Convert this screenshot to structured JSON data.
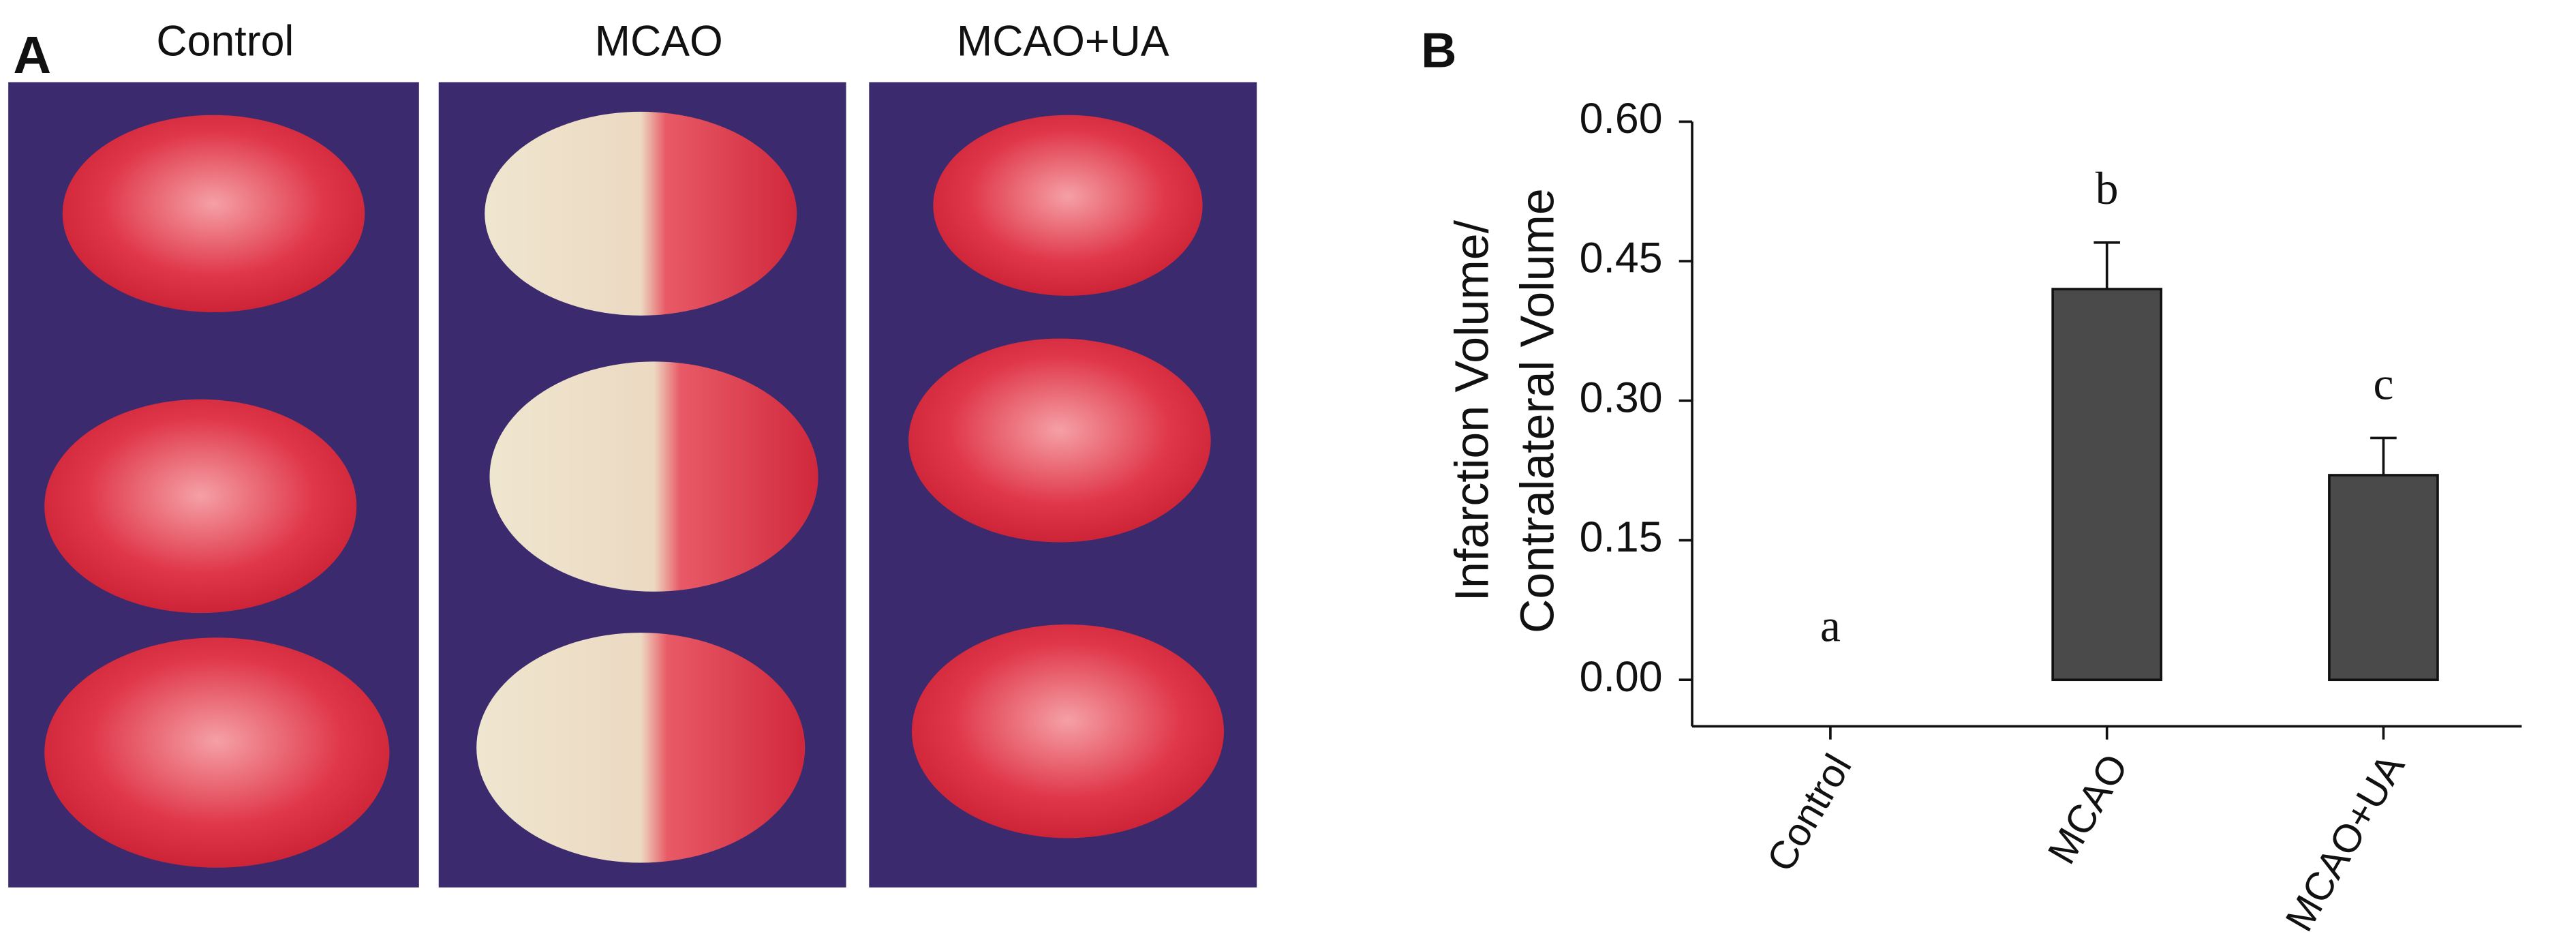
{
  "panel_a": {
    "label": "A",
    "columns": [
      "Control",
      "MCAO",
      "MCAO+UA"
    ]
  },
  "chart_data": {
    "type": "bar",
    "label": "B",
    "ylabel": [
      "Infarction Volume/",
      "Contralateral Volume"
    ],
    "categories": [
      "Control",
      "MCAO",
      "MCAO+UA"
    ],
    "values": [
      0,
      0.42,
      0.22
    ],
    "errors": [
      null,
      0.05,
      0.04
    ],
    "annotations": [
      "a",
      "b",
      "c"
    ],
    "color": "#4a4a4a",
    "ylim": [
      -0.05,
      0.6
    ],
    "yticks": [
      {
        "value": 0,
        "label": "0.00"
      },
      0.15,
      {
        "value": 0.3,
        "label": "0.30"
      },
      0.45,
      {
        "value": 0.6,
        "label": "0.60"
      }
    ]
  }
}
